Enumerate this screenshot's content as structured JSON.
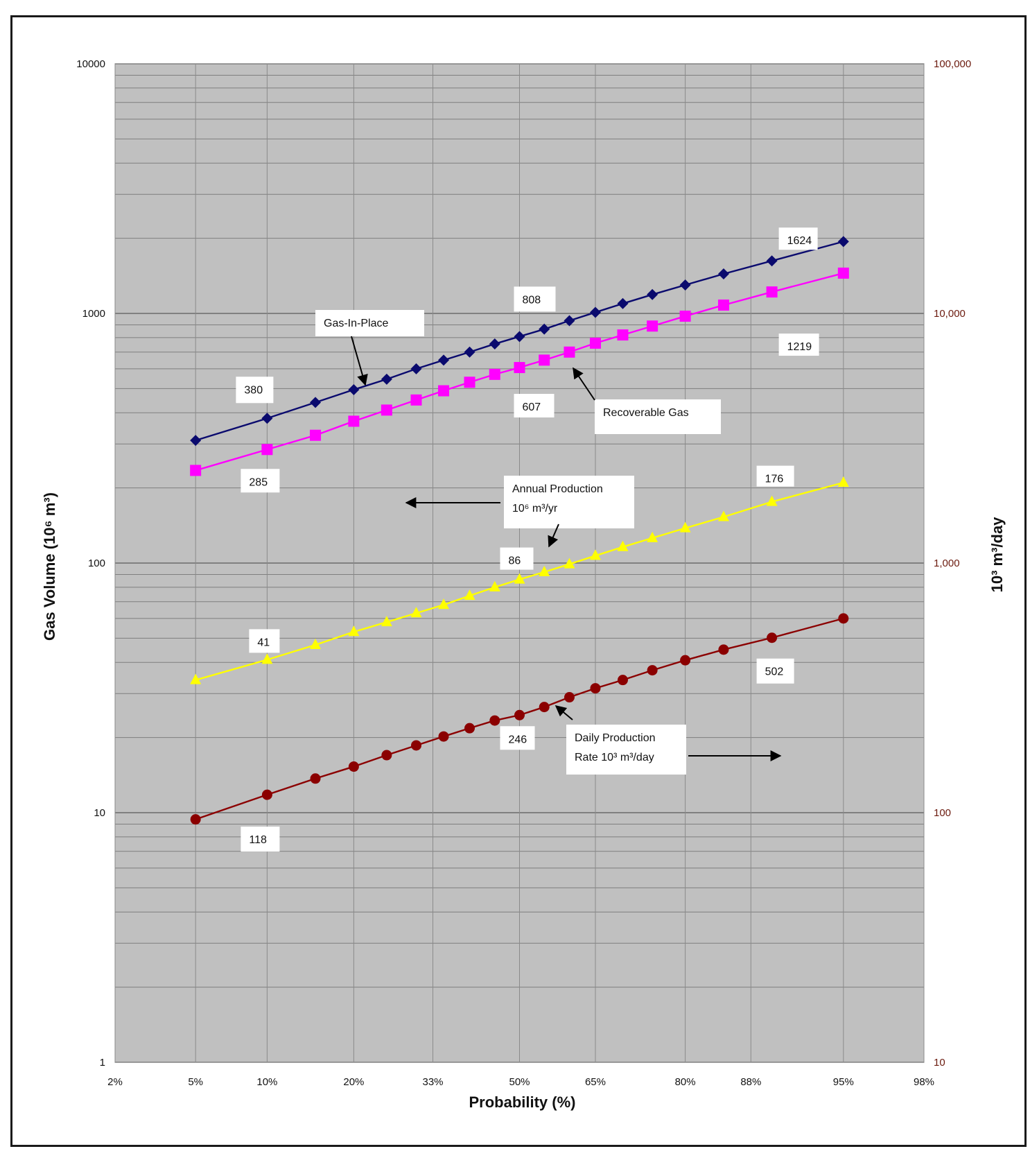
{
  "chart_data": {
    "type": "line",
    "title": "",
    "xlabel": "Probability (%)",
    "ylabel_left": "Gas Volume (10⁶ m³)",
    "ylabel_right": "10³ m³/day",
    "x_scale": "normal-probability",
    "y_scale": "log",
    "ylim_left": [
      1,
      10000
    ],
    "ylim_right": [
      10,
      100000
    ],
    "grid": true,
    "plot_background": "#c0c0c0",
    "x_ticks": [
      {
        "p": 2,
        "label": "2%"
      },
      {
        "p": 5,
        "label": "5%"
      },
      {
        "p": 10,
        "label": "10%"
      },
      {
        "p": 20,
        "label": "20%"
      },
      {
        "p": 33,
        "label": "33%"
      },
      {
        "p": 50,
        "label": "50%"
      },
      {
        "p": 65,
        "label": "65%"
      },
      {
        "p": 80,
        "label": "80%"
      },
      {
        "p": 88,
        "label": "88%"
      },
      {
        "p": 95,
        "label": "95%"
      },
      {
        "p": 98,
        "label": "98%"
      }
    ],
    "y_ticks_left": [
      {
        "v": 1,
        "label": "1"
      },
      {
        "v": 10,
        "label": "10"
      },
      {
        "v": 100,
        "label": "100"
      },
      {
        "v": 1000,
        "label": "1000"
      },
      {
        "v": 10000,
        "label": "10000"
      }
    ],
    "y_ticks_right": [
      {
        "v": 10,
        "label": "10"
      },
      {
        "v": 100,
        "label": "100"
      },
      {
        "v": 1000,
        "label": "1,000"
      },
      {
        "v": 10000,
        "label": "10,000"
      },
      {
        "v": 100000,
        "label": "100,000"
      }
    ],
    "x": [
      5,
      10,
      15,
      20,
      25,
      30,
      35,
      40,
      45,
      50,
      55,
      60,
      65,
      70,
      75,
      80,
      85,
      90,
      95
    ],
    "series": [
      {
        "name": "Gas-In-Place",
        "axis": "left",
        "color": "#0a0a6e",
        "marker": "diamond",
        "values": [
          310,
          380,
          440,
          495,
          545,
          600,
          650,
          700,
          755,
          808,
          865,
          935,
          1010,
          1095,
          1190,
          1300,
          1440,
          1624,
          1940
        ]
      },
      {
        "name": "Recoverable Gas",
        "axis": "left",
        "color": "#ff00ff",
        "marker": "square",
        "values": [
          235,
          285,
          325,
          370,
          410,
          450,
          490,
          530,
          570,
          607,
          650,
          700,
          760,
          820,
          890,
          975,
          1080,
          1219,
          1450
        ]
      },
      {
        "name": "Annual Production",
        "axis": "left",
        "color": "#ffff00",
        "marker": "triangle",
        "values": [
          34,
          41,
          47,
          53,
          58,
          63,
          68,
          74,
          80,
          86,
          92,
          99,
          107,
          116,
          126,
          138,
          153,
          176,
          210
        ]
      },
      {
        "name": "Daily Production Rate",
        "axis": "right",
        "color": "#8b0000",
        "marker": "circle",
        "values": [
          94,
          118,
          137,
          153,
          170,
          186,
          202,
          218,
          234,
          246,
          265,
          290,
          315,
          340,
          372,
          408,
          450,
          502,
          600
        ]
      }
    ],
    "data_labels": [
      {
        "text": "1624",
        "series": "Gas-In-Place",
        "x": 90
      },
      {
        "text": "808",
        "series": "Gas-In-Place",
        "x": 50
      },
      {
        "text": "380",
        "series": "Gas-In-Place",
        "x": 10
      },
      {
        "text": "1219",
        "series": "Recoverable Gas",
        "x": 90
      },
      {
        "text": "607",
        "series": "Recoverable Gas",
        "x": 50
      },
      {
        "text": "285",
        "series": "Recoverable Gas",
        "x": 10
      },
      {
        "text": "176",
        "series": "Annual Production",
        "x": 90
      },
      {
        "text": "86",
        "series": "Annual Production",
        "x": 50
      },
      {
        "text": "41",
        "series": "Annual Production",
        "x": 10
      },
      {
        "text": "502",
        "series": "Daily Production Rate",
        "x": 90
      },
      {
        "text": "246",
        "series": "Daily Production Rate",
        "x": 50
      },
      {
        "text": "118",
        "series": "Daily Production Rate",
        "x": 10
      }
    ],
    "annotations": [
      {
        "lines": [
          "Gas-In-Place"
        ]
      },
      {
        "lines": [
          "Recoverable Gas"
        ]
      },
      {
        "lines": [
          "Annual Production",
          "10⁶ m³/yr"
        ]
      },
      {
        "lines": [
          "Daily Production",
          "Rate 10³ m³/day"
        ]
      }
    ]
  }
}
